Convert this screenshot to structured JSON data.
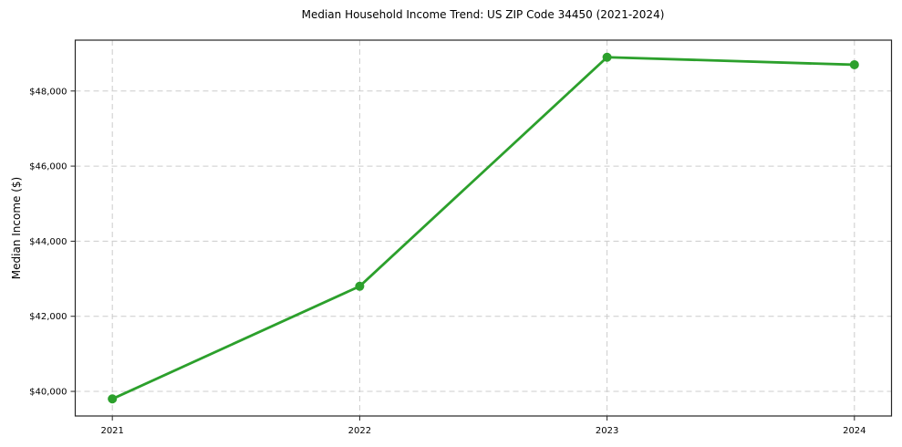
{
  "chart_data": {
    "type": "line",
    "title": "Median Household Income Trend: US ZIP Code 34450 (2021-2024)",
    "xlabel": "",
    "ylabel": "Median Income ($)",
    "x": [
      2021,
      2022,
      2023,
      2024
    ],
    "x_tick_labels": [
      "2021",
      "2022",
      "2023",
      "2024"
    ],
    "series": [
      {
        "name": "Median Household Income",
        "values": [
          39800,
          42800,
          48900,
          48700
        ],
        "color": "#2ca02c",
        "marker": "circle"
      }
    ],
    "y_ticks": [
      40000,
      42000,
      44000,
      46000,
      48000
    ],
    "y_tick_labels": [
      "$40,000",
      "$42,000",
      "$44,000",
      "$46,000",
      "$48,000"
    ],
    "xlim": [
      2020.85,
      2024.15
    ],
    "ylim": [
      39345,
      49355
    ],
    "grid": true,
    "grid_style": "dashed",
    "legend": "none",
    "colors": {
      "line": "#2ca02c",
      "grid": "#cccccc",
      "spine": "#262626",
      "tick": "#262626",
      "text": "#000000",
      "background": "#ffffff"
    }
  }
}
